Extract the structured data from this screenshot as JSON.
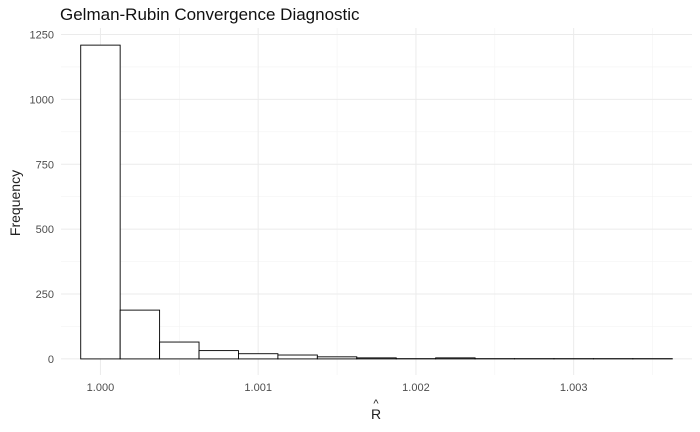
{
  "chart_data": {
    "type": "bar",
    "title": "Gelman-Rubin Convergence Diagnostic",
    "xlabel": "R",
    "xlabel_accent": "^",
    "ylabel": "Frequency",
    "bin_width": 0.00025,
    "bins": [
      {
        "x0": 0.999875,
        "x1": 1.000125,
        "count": 1209
      },
      {
        "x0": 1.000125,
        "x1": 1.000375,
        "count": 188
      },
      {
        "x0": 1.000375,
        "x1": 1.000625,
        "count": 65
      },
      {
        "x0": 1.000625,
        "x1": 1.000875,
        "count": 32
      },
      {
        "x0": 1.000875,
        "x1": 1.001125,
        "count": 20
      },
      {
        "x0": 1.001125,
        "x1": 1.001375,
        "count": 15
      },
      {
        "x0": 1.001375,
        "x1": 1.001625,
        "count": 8
      },
      {
        "x0": 1.001625,
        "x1": 1.001875,
        "count": 4
      },
      {
        "x0": 1.001875,
        "x1": 1.002125,
        "count": 1
      },
      {
        "x0": 1.002125,
        "x1": 1.002375,
        "count": 4
      },
      {
        "x0": 1.002375,
        "x1": 1.002625,
        "count": 1
      },
      {
        "x0": 1.002625,
        "x1": 1.002875,
        "count": 1
      },
      {
        "x0": 1.002875,
        "x1": 1.003125,
        "count": 1
      },
      {
        "x0": 1.003125,
        "x1": 1.003375,
        "count": 1
      },
      {
        "x0": 1.003375,
        "x1": 1.003625,
        "count": 1
      }
    ],
    "xlim": [
      0.99975,
      1.00375
    ],
    "ylim": [
      -62,
      1275
    ],
    "x_ticks": [
      {
        "value": 1.0,
        "label": "1.000"
      },
      {
        "value": 1.001,
        "label": "1.001"
      },
      {
        "value": 1.002,
        "label": "1.002"
      },
      {
        "value": 1.003,
        "label": "1.003"
      }
    ],
    "y_ticks": [
      {
        "value": 0,
        "label": "0"
      },
      {
        "value": 250,
        "label": "250"
      },
      {
        "value": 500,
        "label": "500"
      },
      {
        "value": 750,
        "label": "750"
      },
      {
        "value": 1000,
        "label": "1000"
      },
      {
        "value": 1250,
        "label": "1250"
      }
    ],
    "grid": true,
    "legend": "none",
    "bar_fill": "#ffffff",
    "bar_stroke": "#000000",
    "grid_major_color": "#ebebeb",
    "grid_minor_color": "#f3f3f3"
  }
}
